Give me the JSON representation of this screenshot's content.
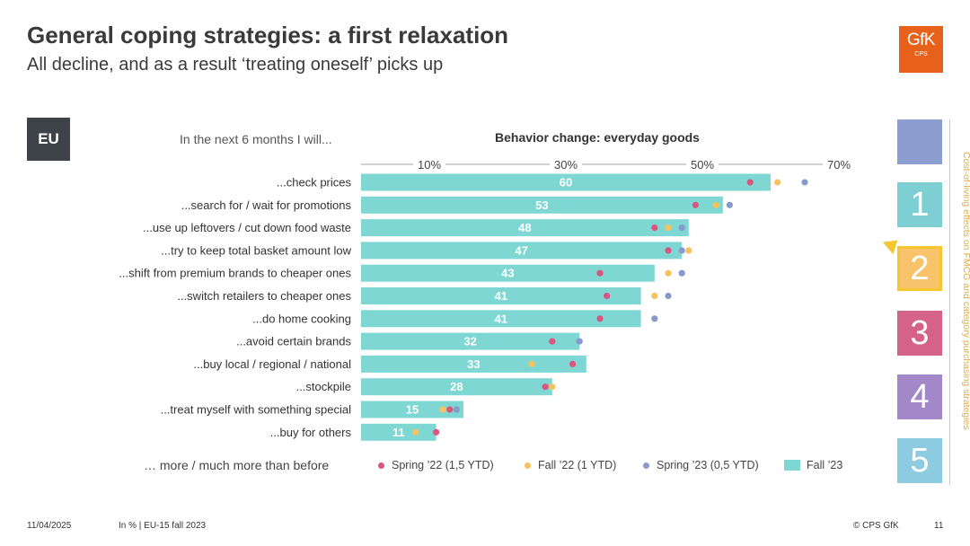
{
  "header": {
    "title": "General coping strategies: a first relaxation",
    "subtitle": "All decline, and as a result ‘treating oneself’ picks up",
    "logo_text": "GfK",
    "logo_sub": "CPS"
  },
  "region_label": "EU",
  "question": "In the next 6 months I will...",
  "footnote_more": "… more / much more than before",
  "chart_data": {
    "type": "bar",
    "title": "Behavior change: everyday goods",
    "orientation": "horizontal",
    "axis_ticks": [
      "10%",
      "30%",
      "50%",
      "70%"
    ],
    "tick_values": [
      10,
      30,
      50,
      70
    ],
    "xlim": [
      0,
      70
    ],
    "grid": false,
    "legend_position": "bottom",
    "categories": [
      "...check prices",
      "...search for / wait for promotions",
      "...use up leftovers / cut down food waste",
      "...try to keep total basket amount low",
      "...shift from premium brands to cheaper ones",
      "...switch retailers to cheaper ones",
      "...do home cooking",
      "...avoid certain brands",
      "...buy local / regional / national",
      "...stockpile",
      "...treat myself with something special",
      "...buy for others"
    ],
    "series": [
      {
        "name": "Spring ’22 (1,5 YTD)",
        "kind": "dot",
        "color": "#d9567e",
        "values": [
          57,
          49,
          43,
          45,
          35,
          36,
          35,
          28,
          31,
          27,
          13,
          11
        ]
      },
      {
        "name": "Fall ’22 (1 YTD)",
        "kind": "dot",
        "color": "#f7c15f",
        "values": [
          61,
          52,
          45,
          48,
          45,
          43,
          43,
          null,
          25,
          28,
          12,
          8
        ]
      },
      {
        "name": "Spring ’23 (0,5 YTD)",
        "kind": "dot",
        "color": "#8899cc",
        "values": [
          65,
          54,
          47,
          47,
          47,
          45,
          43,
          32,
          null,
          null,
          14,
          null
        ]
      },
      {
        "name": "Fall ’23",
        "kind": "bar",
        "color": "#7fd7d4",
        "values": [
          60,
          53,
          48,
          47,
          43,
          41,
          41,
          32,
          33,
          28,
          15,
          11
        ]
      }
    ]
  },
  "nav": {
    "items": [
      {
        "label": "",
        "color": "#8c9dd0"
      },
      {
        "label": "1",
        "color": "#7ecfd4"
      },
      {
        "label": "2",
        "color": "#f9c36b"
      },
      {
        "label": "3",
        "color": "#d46289"
      },
      {
        "label": "4",
        "color": "#a388c9"
      },
      {
        "label": "5",
        "color": "#8ccbe0"
      }
    ],
    "side_text": "Cost-of-living effects on FMCG and category purchasing strategies"
  },
  "footer": {
    "date": "11/04/2025",
    "note": "In % | EU-15 fall 2023",
    "copyright": "© CPS GfK",
    "page": "11"
  }
}
